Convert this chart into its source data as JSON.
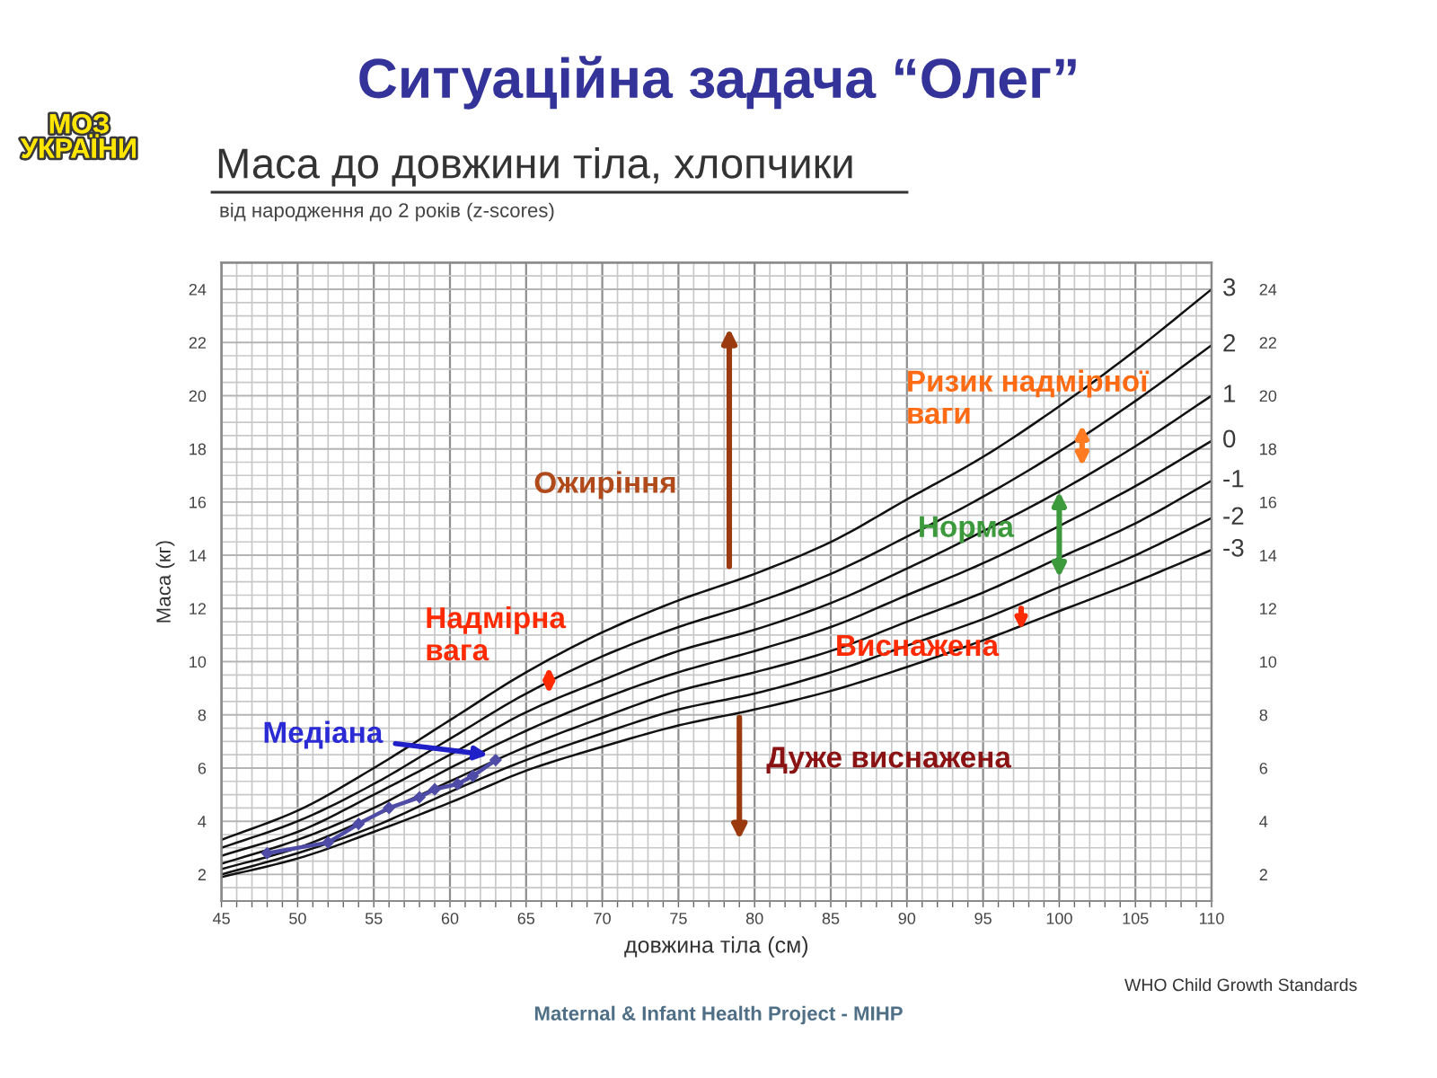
{
  "chart_data": {
    "type": "line",
    "title": "Ситуаційна задача “Олег”",
    "subtitle": "Маса до довжини тіла, хлопчики",
    "xlabel": "довжина тіла (см)",
    "ylabel": "Маса (кг)",
    "x": [
      45,
      50,
      55,
      60,
      65,
      70,
      75,
      80,
      85,
      90,
      95,
      100,
      105,
      110
    ],
    "series": [
      {
        "name": "3",
        "color": "#111111",
        "values": [
          3.3,
          4.4,
          6.0,
          7.8,
          9.6,
          11.1,
          12.3,
          13.3,
          14.5,
          16.1,
          17.7,
          19.6,
          21.7,
          24.0
        ]
      },
      {
        "name": "2",
        "color": "#111111",
        "values": [
          3.0,
          4.0,
          5.4,
          7.1,
          8.8,
          10.2,
          11.3,
          12.2,
          13.3,
          14.7,
          16.2,
          17.9,
          19.8,
          21.9
        ]
      },
      {
        "name": "1",
        "color": "#111111",
        "values": [
          2.7,
          3.6,
          5.0,
          6.5,
          8.1,
          9.3,
          10.4,
          11.2,
          12.2,
          13.5,
          14.9,
          16.4,
          18.1,
          20.0
        ]
      },
      {
        "name": "0",
        "color": "#111111",
        "values": [
          2.4,
          3.3,
          4.5,
          6.0,
          7.4,
          8.6,
          9.6,
          10.4,
          11.3,
          12.5,
          13.7,
          15.1,
          16.6,
          18.3
        ]
      },
      {
        "name": "-1",
        "color": "#111111",
        "values": [
          2.2,
          3.0,
          4.2,
          5.5,
          6.8,
          7.9,
          8.9,
          9.6,
          10.4,
          11.5,
          12.6,
          13.9,
          15.2,
          16.8
        ]
      },
      {
        "name": "-2",
        "color": "#111111",
        "values": [
          2.0,
          2.8,
          3.8,
          5.1,
          6.3,
          7.3,
          8.2,
          8.8,
          9.6,
          10.6,
          11.6,
          12.8,
          14.0,
          15.4
        ]
      },
      {
        "name": "-3",
        "color": "#111111",
        "values": [
          1.9,
          2.6,
          3.6,
          4.7,
          5.9,
          6.8,
          7.6,
          8.2,
          8.9,
          9.8,
          10.8,
          11.9,
          13.0,
          14.2
        ]
      },
      {
        "x": [
          48,
          52,
          54,
          56,
          58,
          59,
          60.5,
          61.5,
          63
        ],
        "values": [
          2.8,
          3.2,
          3.9,
          4.5,
          4.9,
          5.2,
          5.4,
          5.7,
          6.3
        ],
        "color": "#4e4ca6",
        "marker": "diamond"
      }
    ],
    "xlim": [
      45,
      110
    ],
    "ylim": [
      1,
      25
    ],
    "xticks": [
      45,
      {
        "value": 46,
        "label": null
      },
      {
        "value": 47,
        "label": null
      },
      {
        "value": 48,
        "label": null
      },
      {
        "value": 49,
        "label": null
      },
      50,
      {
        "value": 51,
        "label": null
      },
      {
        "value": 52,
        "label": null
      },
      {
        "value": 53,
        "label": null
      },
      {
        "value": 54,
        "label": null
      },
      55,
      {
        "value": 56,
        "label": null
      },
      {
        "value": 57,
        "label": null
      },
      {
        "value": 58,
        "label": null
      },
      {
        "value": 59,
        "label": null
      },
      60,
      {
        "value": 61,
        "label": null
      },
      {
        "value": 62,
        "label": null
      },
      {
        "value": 63,
        "label": null
      },
      {
        "value": 64,
        "label": null
      },
      65,
      {
        "value": 66,
        "label": null
      },
      {
        "value": 67,
        "label": null
      },
      {
        "value": 68,
        "label": null
      },
      {
        "value": 69,
        "label": null
      },
      70,
      {
        "value": 71,
        "label": null
      },
      {
        "value": 72,
        "label": null
      },
      {
        "value": 73,
        "label": null
      },
      {
        "value": 74,
        "label": null
      },
      75,
      {
        "value": 76,
        "label": null
      },
      {
        "value": 77,
        "label": null
      },
      {
        "value": 78,
        "label": null
      },
      {
        "value": 79,
        "label": null
      },
      80,
      {
        "value": 81,
        "label": null
      },
      {
        "value": 82,
        "label": null
      },
      {
        "value": 83,
        "label": null
      },
      {
        "value": 84,
        "label": null
      },
      85,
      {
        "value": 86,
        "label": null
      },
      {
        "value": 87,
        "label": null
      },
      {
        "value": 88,
        "label": null
      },
      {
        "value": 89,
        "label": null
      },
      90,
      {
        "value": 91,
        "label": null
      },
      {
        "value": 92,
        "label": null
      },
      {
        "value": 93,
        "label": null
      },
      {
        "value": 94,
        "label": null
      },
      95,
      {
        "value": 96,
        "label": null
      },
      {
        "value": 97,
        "label": null
      },
      {
        "value": 98,
        "label": null
      },
      {
        "value": 99,
        "label": null
      },
      100,
      {
        "value": 101,
        "label": null
      },
      {
        "value": 102,
        "label": null
      },
      {
        "value": 103,
        "label": null
      },
      {
        "value": 104,
        "label": null
      },
      105,
      {
        "value": 106,
        "label": null
      },
      {
        "value": 107,
        "label": null
      },
      {
        "value": 108,
        "label": null
      },
      {
        "value": 109,
        "label": null
      },
      110
    ],
    "yticks": [
      {
        "value": 1.5,
        "label": null
      },
      2,
      {
        "value": 2.5,
        "label": null
      },
      {
        "value": 3,
        "label": null
      },
      {
        "value": 3.5,
        "label": null
      },
      4,
      {
        "value": 4.5,
        "label": null
      },
      {
        "value": 5,
        "label": null
      },
      {
        "value": 5.5,
        "label": null
      },
      6,
      {
        "value": 6.5,
        "label": null
      },
      {
        "value": 7,
        "label": null
      },
      {
        "value": 7.5,
        "label": null
      },
      8,
      {
        "value": 8.5,
        "label": null
      },
      {
        "value": 9,
        "label": null
      },
      {
        "value": 9.5,
        "label": null
      },
      10,
      {
        "value": 10.5,
        "label": null
      },
      {
        "value": 11,
        "label": null
      },
      {
        "value": 11.5,
        "label": null
      },
      12,
      {
        "value": 12.5,
        "label": null
      },
      {
        "value": 13,
        "label": null
      },
      {
        "value": 13.5,
        "label": null
      },
      14,
      {
        "value": 14.5,
        "label": null
      },
      {
        "value": 15,
        "label": null
      },
      {
        "value": 15.5,
        "label": null
      },
      16,
      {
        "value": 16.5,
        "label": null
      },
      {
        "value": 17,
        "label": null
      },
      {
        "value": 17.5,
        "label": null
      },
      18,
      {
        "value": 18.5,
        "label": null
      },
      {
        "value": 19,
        "label": null
      },
      {
        "value": 19.5,
        "label": null
      },
      20,
      {
        "value": 20.5,
        "label": null
      },
      {
        "value": 21,
        "label": null
      },
      {
        "value": 21.5,
        "label": null
      },
      22,
      {
        "value": 22.5,
        "label": null
      },
      {
        "value": 23,
        "label": null
      },
      {
        "value": 23.5,
        "label": null
      },
      24,
      {
        "value": 24.5,
        "label": null
      }
    ],
    "y2lim": [
      1,
      25
    ],
    "y2ticks": [
      2,
      4,
      6,
      8,
      10,
      12,
      14,
      16,
      18,
      20,
      22,
      24
    ],
    "grid": true,
    "annotations": [
      "МОЗ\nУКРАЇНИ",
      "від народження до 2 років (z-scores)",
      {
        "text": "Ризик надмірної\nваги",
        "x": 101.5,
        "y": 18.9
      },
      "Ожиріння",
      {
        "text": "Норма",
        "x": 100,
        "y": 16.4
      },
      {
        "text": "Надмірна\nвага",
        "x": 66.5,
        "y": 9.8
      },
      {
        "text": "Виснажена",
        "x": 97.5,
        "y": 12.0
      },
      {
        "text": "Медіана",
        "x": 62.5,
        "y": 6.5
      },
      {
        "text": "Дуже виснажена",
        "x": 79,
        "y": 7.9
      },
      "WHO Child Growth Standards",
      "Maternal & Infant Health Project - MIHP"
    ]
  }
}
